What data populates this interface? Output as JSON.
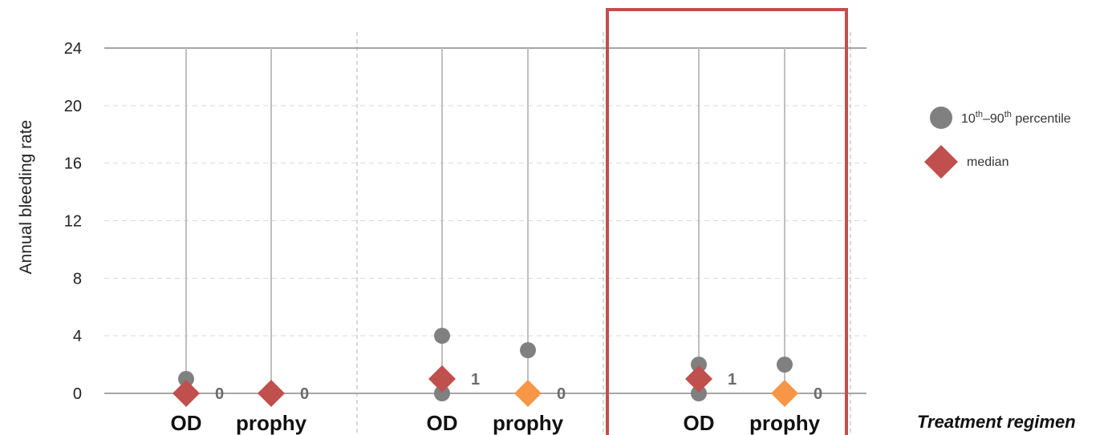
{
  "chart_data": {
    "type": "scatter",
    "ylabel": "Annual bleeding rate",
    "xlabel": "Treatment regimen",
    "ylim": [
      0,
      24
    ],
    "yticks": [
      0,
      4,
      8,
      12,
      16,
      20,
      24
    ],
    "grid": "dashed horizontal",
    "groups": [
      {
        "categories": [
          {
            "label": "OD",
            "p10": 0,
            "p90": 1,
            "median": 0,
            "median_label": "0",
            "median_color": "#c0504d"
          },
          {
            "label": "prophy",
            "p10": 0,
            "p90": 0,
            "median": 0,
            "median_label": "0",
            "median_color": "#c0504d"
          }
        ]
      },
      {
        "categories": [
          {
            "label": "OD",
            "p10": 0,
            "p90": 4,
            "median": 1,
            "median_label": "1",
            "median_color": "#c0504d"
          },
          {
            "label": "prophy",
            "p10": 0,
            "p90": 3,
            "median": 0,
            "median_label": "0",
            "median_color": "#f79646"
          }
        ]
      },
      {
        "highlighted": true,
        "categories": [
          {
            "label": "OD",
            "p10": 0,
            "p90": 2,
            "median": 1,
            "median_label": "1",
            "median_color": "#c0504d"
          },
          {
            "label": "prophy",
            "p10": 0,
            "p90": 2,
            "median": 0,
            "median_label": "0",
            "median_color": "#f79646"
          }
        ]
      }
    ],
    "legend": {
      "placement": "right",
      "percentile": {
        "pre": "10",
        "sup1": "th",
        "mid": "–90",
        "sup2": "th",
        "post": " percentile",
        "color": "#808080"
      },
      "median": {
        "label": "median",
        "color": "#c0504d"
      }
    },
    "colors": {
      "whisker": "#bfbfbf",
      "percentile": "#808080",
      "highlight_box": "#c0504d"
    }
  }
}
